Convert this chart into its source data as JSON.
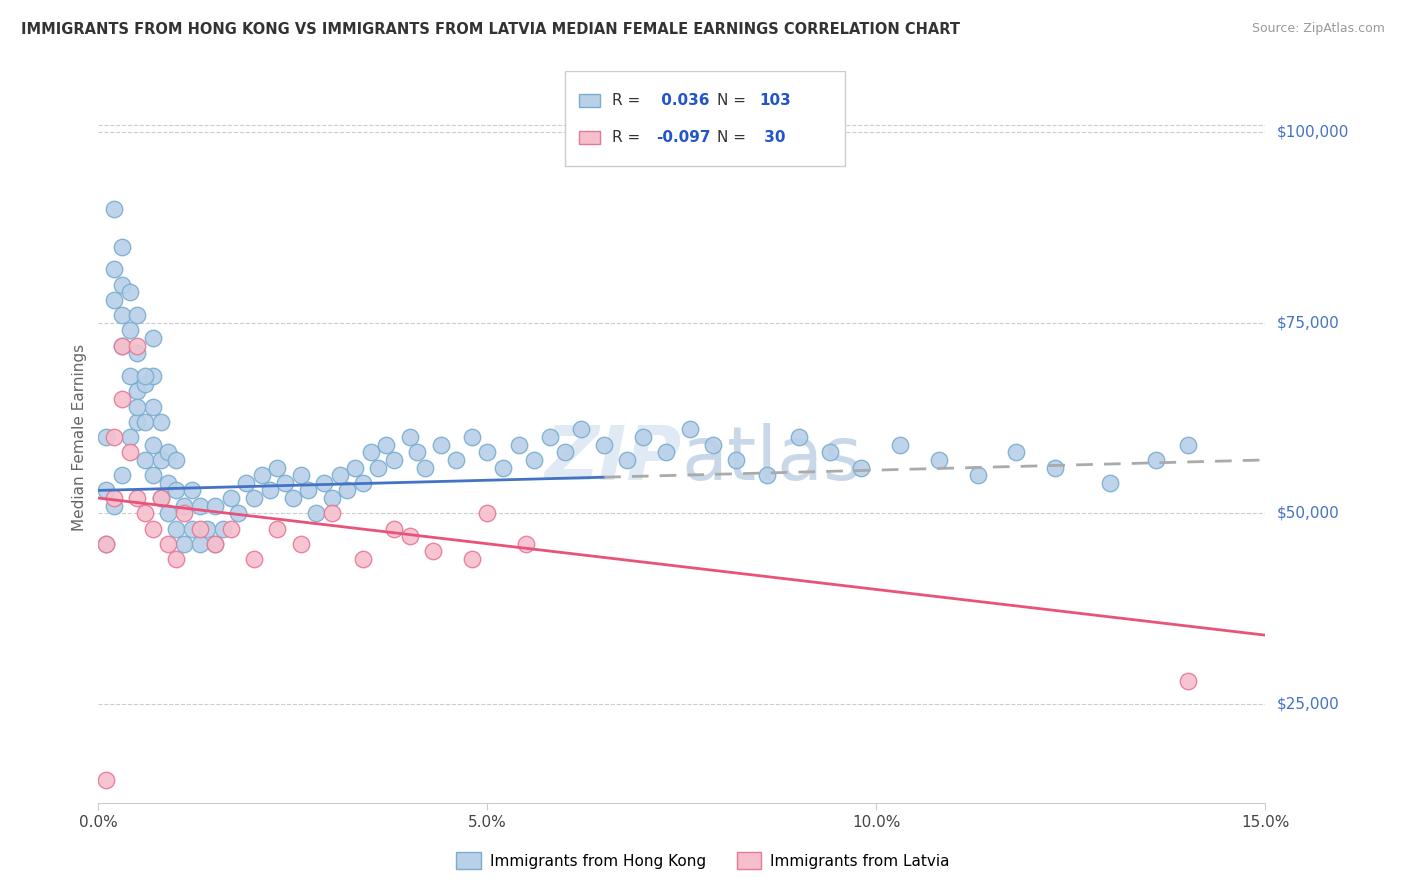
{
  "title": "IMMIGRANTS FROM HONG KONG VS IMMIGRANTS FROM LATVIA MEDIAN FEMALE EARNINGS CORRELATION CHART",
  "source": "Source: ZipAtlas.com",
  "ylabel": "Median Female Earnings",
  "xlim": [
    0.0,
    0.15
  ],
  "ylim": [
    12000,
    108000
  ],
  "yticks": [
    25000,
    50000,
    75000,
    100000
  ],
  "ytick_labels": [
    "$25,000",
    "$50,000",
    "$75,000",
    "$100,000"
  ],
  "xticks": [
    0.0,
    0.05,
    0.1,
    0.15
  ],
  "xtick_labels": [
    "0.0%",
    "5.0%",
    "10.0%",
    "15.0%"
  ],
  "hk_color": "#b8d0e8",
  "hk_edge_color": "#7aaed0",
  "lv_color": "#f5bfcc",
  "lv_edge_color": "#e87898",
  "blue_line_color": "#4472C4",
  "blue_dash_color": "#aaaaaa",
  "pink_line_color": "#E8537A",
  "watermark_color": "#e0eaf4",
  "background_color": "#ffffff",
  "grid_color": "#cccccc",
  "legend_r_color": "#2255cc",
  "hk_R": 0.036,
  "hk_N": 103,
  "lv_R": -0.097,
  "lv_N": 30,
  "hk_x": [
    0.001,
    0.001,
    0.002,
    0.002,
    0.002,
    0.003,
    0.003,
    0.003,
    0.003,
    0.004,
    0.004,
    0.004,
    0.005,
    0.005,
    0.005,
    0.005,
    0.006,
    0.006,
    0.006,
    0.007,
    0.007,
    0.007,
    0.007,
    0.008,
    0.008,
    0.008,
    0.009,
    0.009,
    0.009,
    0.01,
    0.01,
    0.01,
    0.011,
    0.011,
    0.012,
    0.012,
    0.013,
    0.013,
    0.014,
    0.015,
    0.015,
    0.016,
    0.017,
    0.018,
    0.019,
    0.02,
    0.021,
    0.022,
    0.023,
    0.024,
    0.025,
    0.026,
    0.027,
    0.028,
    0.029,
    0.03,
    0.031,
    0.032,
    0.033,
    0.034,
    0.035,
    0.036,
    0.037,
    0.038,
    0.04,
    0.041,
    0.042,
    0.044,
    0.046,
    0.048,
    0.05,
    0.052,
    0.054,
    0.056,
    0.058,
    0.06,
    0.062,
    0.065,
    0.068,
    0.07,
    0.073,
    0.076,
    0.079,
    0.082,
    0.086,
    0.09,
    0.094,
    0.098,
    0.103,
    0.108,
    0.113,
    0.118,
    0.123,
    0.13,
    0.136,
    0.14,
    0.001,
    0.002,
    0.003,
    0.004,
    0.005,
    0.006,
    0.007
  ],
  "hk_y": [
    53000,
    60000,
    78000,
    82000,
    90000,
    72000,
    76000,
    80000,
    85000,
    68000,
    74000,
    79000,
    62000,
    66000,
    71000,
    76000,
    57000,
    62000,
    67000,
    55000,
    59000,
    64000,
    68000,
    52000,
    57000,
    62000,
    50000,
    54000,
    58000,
    48000,
    53000,
    57000,
    46000,
    51000,
    48000,
    53000,
    46000,
    51000,
    48000,
    46000,
    51000,
    48000,
    52000,
    50000,
    54000,
    52000,
    55000,
    53000,
    56000,
    54000,
    52000,
    55000,
    53000,
    50000,
    54000,
    52000,
    55000,
    53000,
    56000,
    54000,
    58000,
    56000,
    59000,
    57000,
    60000,
    58000,
    56000,
    59000,
    57000,
    60000,
    58000,
    56000,
    59000,
    57000,
    60000,
    58000,
    61000,
    59000,
    57000,
    60000,
    58000,
    61000,
    59000,
    57000,
    55000,
    60000,
    58000,
    56000,
    59000,
    57000,
    55000,
    58000,
    56000,
    54000,
    57000,
    59000,
    46000,
    51000,
    55000,
    60000,
    64000,
    68000,
    73000
  ],
  "lv_x": [
    0.001,
    0.002,
    0.002,
    0.003,
    0.003,
    0.004,
    0.005,
    0.005,
    0.006,
    0.007,
    0.008,
    0.009,
    0.01,
    0.011,
    0.013,
    0.015,
    0.017,
    0.02,
    0.023,
    0.026,
    0.03,
    0.034,
    0.038,
    0.04,
    0.043,
    0.048,
    0.05,
    0.055,
    0.14,
    0.001
  ],
  "lv_y": [
    46000,
    52000,
    60000,
    72000,
    65000,
    58000,
    52000,
    72000,
    50000,
    48000,
    52000,
    46000,
    44000,
    50000,
    48000,
    46000,
    48000,
    44000,
    48000,
    46000,
    50000,
    44000,
    48000,
    47000,
    45000,
    44000,
    50000,
    46000,
    28000,
    15000
  ]
}
